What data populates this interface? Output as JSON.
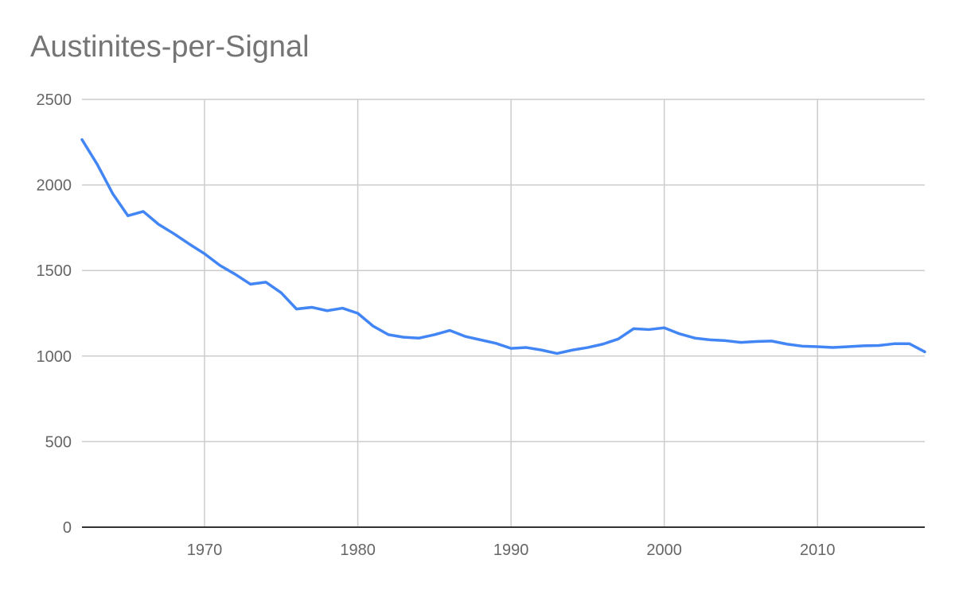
{
  "chart_data": {
    "type": "line",
    "title": "Austinites-per-Signal",
    "xlabel": "",
    "ylabel": "",
    "xlim": [
      1962,
      2017
    ],
    "ylim": [
      0,
      2500
    ],
    "x_ticks": [
      1970,
      1980,
      1990,
      2000,
      2010
    ],
    "y_ticks": [
      0,
      500,
      1000,
      1500,
      2000,
      2500
    ],
    "grid": true,
    "legend": "none",
    "series": [
      {
        "color": "#4285f4",
        "x": [
          1962,
          1963,
          1964,
          1965,
          1966,
          1967,
          1968,
          1969,
          1970,
          1971,
          1972,
          1973,
          1974,
          1975,
          1976,
          1977,
          1978,
          1979,
          1980,
          1981,
          1982,
          1983,
          1984,
          1985,
          1986,
          1987,
          1988,
          1989,
          1990,
          1991,
          1992,
          1993,
          1994,
          1995,
          1996,
          1997,
          1998,
          1999,
          2000,
          2001,
          2002,
          2003,
          2004,
          2005,
          2006,
          2007,
          2008,
          2009,
          2010,
          2011,
          2012,
          2013,
          2014,
          2015,
          2016,
          2017
        ],
        "values": [
          2265,
          2120,
          1950,
          1820,
          1845,
          1770,
          1715,
          1655,
          1598,
          1530,
          1478,
          1420,
          1432,
          1370,
          1275,
          1285,
          1265,
          1280,
          1250,
          1175,
          1125,
          1110,
          1105,
          1125,
          1150,
          1115,
          1095,
          1075,
          1045,
          1050,
          1035,
          1015,
          1035,
          1050,
          1070,
          1100,
          1160,
          1155,
          1165,
          1130,
          1105,
          1095,
          1090,
          1080,
          1085,
          1088,
          1070,
          1058,
          1055,
          1050,
          1055,
          1060,
          1062,
          1072,
          1072,
          1025
        ]
      }
    ]
  }
}
